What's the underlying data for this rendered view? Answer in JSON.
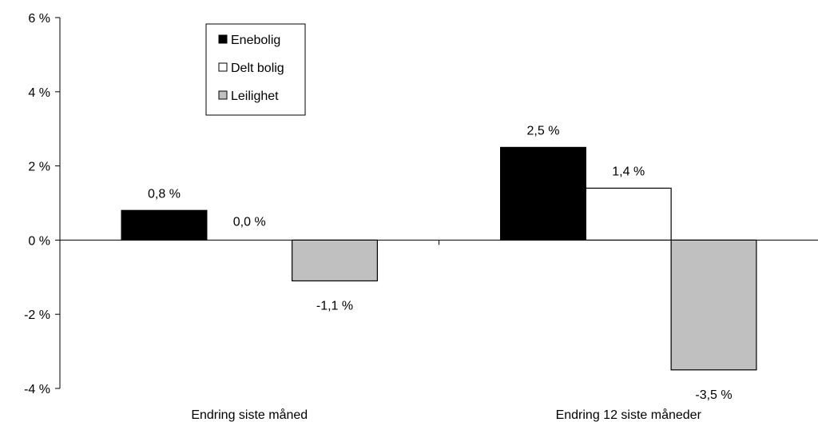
{
  "chart_data": {
    "type": "bar",
    "categories": [
      "Endring siste måned",
      "Endring 12 siste måneder"
    ],
    "series": [
      {
        "name": "Enebolig",
        "color": "#000000",
        "values": [
          0.8,
          2.5
        ],
        "value_labels": [
          "0,8 %",
          "2,5 %"
        ]
      },
      {
        "name": "Delt bolig",
        "color": "#ffffff",
        "values": [
          0.0,
          1.4
        ],
        "value_labels": [
          "0,0 %",
          "1,4 %"
        ]
      },
      {
        "name": "Leilighet",
        "color": "#c0c0c0",
        "values": [
          -1.1,
          -3.5
        ],
        "value_labels": [
          "-1,1 %",
          "-3,5 %"
        ]
      }
    ],
    "ylim": [
      -4,
      6
    ],
    "yticks": [
      6,
      4,
      2,
      0,
      -2,
      -4
    ],
    "ytick_labels": [
      "6 %",
      "4 %",
      "2 %",
      "0 %",
      "-2 %",
      "-4 %"
    ],
    "legend_position": "top-left",
    "grid": false
  }
}
